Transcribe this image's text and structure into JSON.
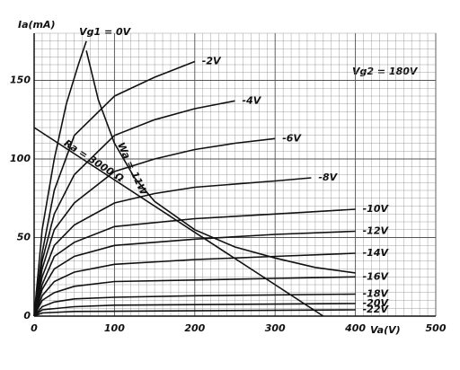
{
  "chart_data": {
    "type": "line",
    "y_label": "Ia(mA)",
    "x_label": "Va(V)",
    "annotation": "Vg2 = 180V",
    "xlim": [
      0,
      500
    ],
    "ylim": [
      0,
      180
    ],
    "xticks": [
      0,
      100,
      200,
      300,
      400,
      500
    ],
    "yticks": [
      0,
      50,
      100,
      150
    ],
    "grid": true,
    "color": "#111111",
    "series": [
      {
        "name": "Vg1 = 0V",
        "x": [
          0,
          10,
          25,
          40,
          55,
          65
        ],
        "values": [
          0,
          55,
          100,
          135,
          160,
          175
        ]
      },
      {
        "name": "-2V",
        "x": [
          0,
          10,
          25,
          50,
          100,
          150,
          200
        ],
        "values": [
          0,
          40,
          80,
          115,
          140,
          152,
          162
        ]
      },
      {
        "name": "-4V",
        "x": [
          0,
          10,
          25,
          50,
          100,
          150,
          200,
          250
        ],
        "values": [
          0,
          35,
          65,
          90,
          115,
          125,
          132,
          137
        ]
      },
      {
        "name": "-6V",
        "x": [
          0,
          10,
          25,
          50,
          100,
          150,
          200,
          250,
          300
        ],
        "values": [
          0,
          30,
          55,
          72,
          92,
          100,
          106,
          110,
          113
        ]
      },
      {
        "name": "-8V",
        "x": [
          0,
          10,
          25,
          50,
          100,
          150,
          200,
          300,
          345
        ],
        "values": [
          0,
          25,
          45,
          58,
          72,
          78,
          82,
          86,
          88
        ]
      },
      {
        "name": "-10V",
        "x": [
          0,
          10,
          25,
          50,
          100,
          200,
          300,
          400
        ],
        "values": [
          0,
          20,
          38,
          47,
          57,
          62,
          65,
          68
        ]
      },
      {
        "name": "-12V",
        "x": [
          0,
          10,
          25,
          50,
          100,
          200,
          300,
          400
        ],
        "values": [
          0,
          17,
          30,
          38,
          45,
          49,
          52,
          54
        ]
      },
      {
        "name": "-14V",
        "x": [
          0,
          10,
          25,
          50,
          100,
          200,
          300,
          400
        ],
        "values": [
          0,
          13,
          22,
          28,
          33,
          36,
          38,
          40
        ]
      },
      {
        "name": "-16V",
        "x": [
          0,
          10,
          25,
          50,
          100,
          200,
          300,
          400
        ],
        "values": [
          0,
          10,
          15,
          19,
          22,
          23,
          24,
          25
        ]
      },
      {
        "name": "-18V",
        "x": [
          0,
          10,
          25,
          50,
          100,
          200,
          400
        ],
        "values": [
          0,
          6,
          9,
          11,
          12,
          13,
          14
        ]
      },
      {
        "name": "-20V",
        "x": [
          0,
          10,
          50,
          100,
          400
        ],
        "values": [
          0,
          4,
          6,
          7,
          8
        ]
      },
      {
        "name": "-22V",
        "x": [
          0,
          10,
          50,
          400
        ],
        "values": [
          0,
          2,
          3,
          4
        ]
      },
      {
        "name": "Wa = 11W",
        "x": [
          65,
          80,
          100,
          125,
          150,
          200,
          250,
          300,
          350,
          400
        ],
        "values": [
          169,
          137.5,
          110,
          88,
          73,
          55,
          44,
          37,
          31,
          27.5
        ]
      },
      {
        "name": "Ra = 3000 Ω",
        "x": [
          0,
          360
        ],
        "values": [
          120,
          0
        ]
      }
    ]
  }
}
